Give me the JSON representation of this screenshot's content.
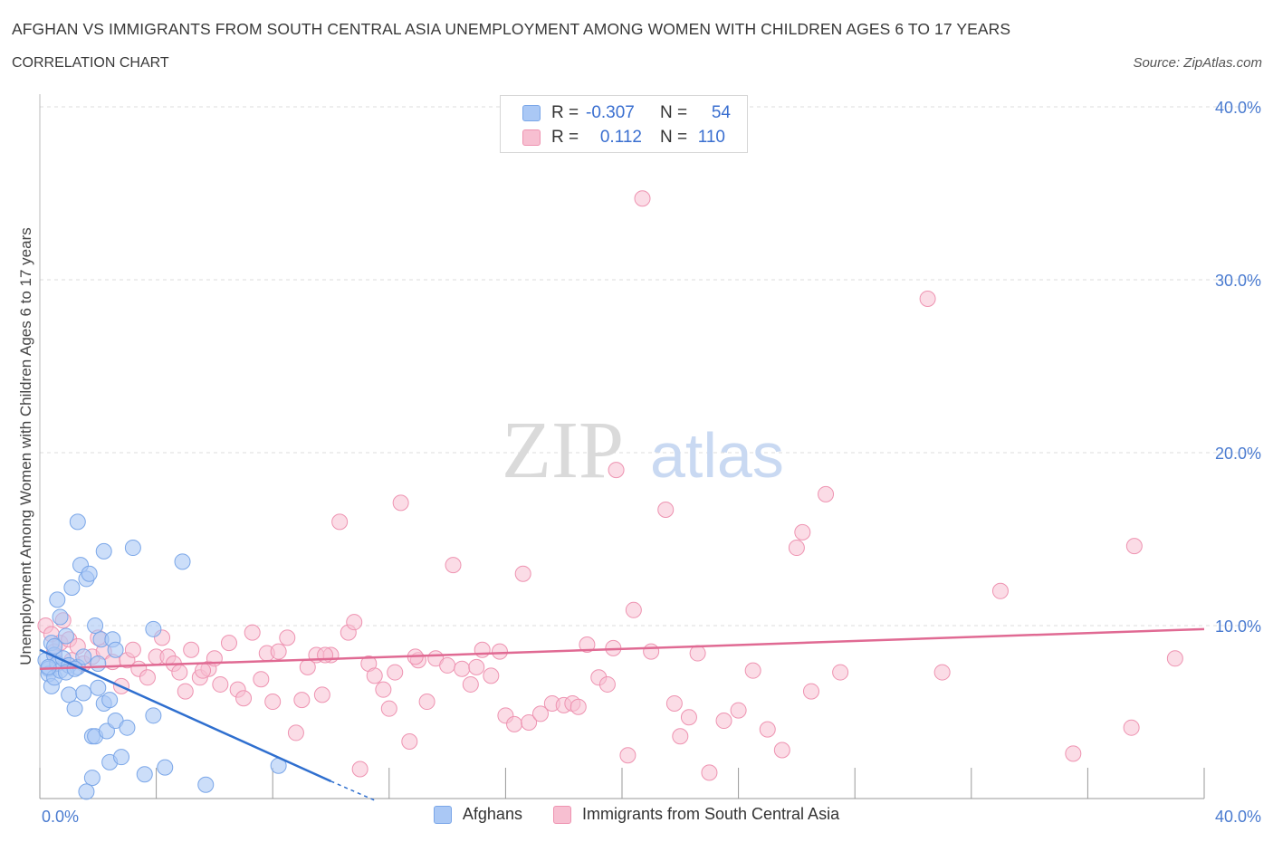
{
  "header": {
    "title": "AFGHAN VS IMMIGRANTS FROM SOUTH CENTRAL ASIA UNEMPLOYMENT AMONG WOMEN WITH CHILDREN AGES 6 TO 17 YEARS",
    "subtitle": "CORRELATION CHART",
    "source": "Source: ZipAtlas.com"
  },
  "watermark": {
    "zip": "ZIP",
    "atlas": "atlas"
  },
  "legend": {
    "afghans": {
      "r_label": "R =",
      "r_value": "-0.307",
      "n_label": "N =",
      "n_value": "54"
    },
    "immigrants": {
      "r_label": "R =",
      "r_value": "0.112",
      "n_label": "N =",
      "n_value": "110"
    }
  },
  "colors": {
    "afghans_fill": "#aac8f5",
    "afghans_stroke": "#7aa6e8",
    "afghans_line": "#2f6fcf",
    "immigrants_fill": "#f7bfd1",
    "immigrants_stroke": "#ee93b1",
    "immigrants_line": "#e06a93",
    "tick_text": "#4a7bd0",
    "grid": "#dddddd"
  },
  "chart_data": {
    "type": "scatter",
    "title": "AFGHAN VS IMMIGRANTS FROM SOUTH CENTRAL ASIA UNEMPLOYMENT AMONG WOMEN WITH CHILDREN AGES 6 TO 17 YEARS",
    "xlabel": "",
    "ylabel": "Unemployment Among Women with Children Ages 6 to 17 years",
    "xlim": [
      0,
      40
    ],
    "ylim": [
      0,
      40
    ],
    "x_tick_labels": [
      "0.0%",
      "40.0%"
    ],
    "y_tick_labels": [
      "10.0%",
      "20.0%",
      "30.0%",
      "40.0%"
    ],
    "y_ticks": [
      10,
      20,
      30,
      40
    ],
    "grid": true,
    "legend_position": "bottom",
    "series": [
      {
        "name": "Afghans",
        "points": [
          [
            0.2,
            8.0
          ],
          [
            0.3,
            7.5
          ],
          [
            0.3,
            7.2
          ],
          [
            0.4,
            9.0
          ],
          [
            0.4,
            6.5
          ],
          [
            0.5,
            8.3
          ],
          [
            0.5,
            7.0
          ],
          [
            0.6,
            7.8
          ],
          [
            0.6,
            11.5
          ],
          [
            0.7,
            10.5
          ],
          [
            0.7,
            7.4
          ],
          [
            0.8,
            8.1
          ],
          [
            0.9,
            9.4
          ],
          [
            1.0,
            6.0
          ],
          [
            1.0,
            7.7
          ],
          [
            1.1,
            12.2
          ],
          [
            1.2,
            5.2
          ],
          [
            1.3,
            16.0
          ],
          [
            1.3,
            7.6
          ],
          [
            1.4,
            13.5
          ],
          [
            1.5,
            6.1
          ],
          [
            1.5,
            8.2
          ],
          [
            1.6,
            12.7
          ],
          [
            1.7,
            13.0
          ],
          [
            1.8,
            3.6
          ],
          [
            1.8,
            1.2
          ],
          [
            1.9,
            3.6
          ],
          [
            1.9,
            10.0
          ],
          [
            2.0,
            6.4
          ],
          [
            2.1,
            9.2
          ],
          [
            2.2,
            5.5
          ],
          [
            2.2,
            14.3
          ],
          [
            2.3,
            3.9
          ],
          [
            2.4,
            5.7
          ],
          [
            2.4,
            2.1
          ],
          [
            2.5,
            9.2
          ],
          [
            2.6,
            4.5
          ],
          [
            2.6,
            8.6
          ],
          [
            2.8,
            2.4
          ],
          [
            3.0,
            4.1
          ],
          [
            3.2,
            14.5
          ],
          [
            3.6,
            1.4
          ],
          [
            3.9,
            9.8
          ],
          [
            3.9,
            4.8
          ],
          [
            4.3,
            1.8
          ],
          [
            4.9,
            13.7
          ],
          [
            5.7,
            0.8
          ],
          [
            8.2,
            1.9
          ],
          [
            0.3,
            7.6
          ],
          [
            1.6,
            0.4
          ],
          [
            0.9,
            7.3
          ],
          [
            0.5,
            8.8
          ],
          [
            1.2,
            7.5
          ],
          [
            2.0,
            7.8
          ]
        ]
      },
      {
        "name": "Immigrants from South Central Asia",
        "points": [
          [
            0.2,
            10.0
          ],
          [
            0.4,
            9.5
          ],
          [
            0.5,
            8.5
          ],
          [
            0.7,
            9.0
          ],
          [
            0.8,
            10.3
          ],
          [
            1.0,
            9.2
          ],
          [
            1.1,
            8.0
          ],
          [
            1.3,
            8.8
          ],
          [
            1.5,
            7.8
          ],
          [
            1.8,
            8.2
          ],
          [
            2.0,
            9.3
          ],
          [
            2.2,
            8.5
          ],
          [
            2.5,
            7.9
          ],
          [
            2.8,
            6.5
          ],
          [
            3.0,
            8.0
          ],
          [
            3.2,
            8.6
          ],
          [
            3.4,
            7.5
          ],
          [
            3.7,
            7.0
          ],
          [
            4.0,
            8.2
          ],
          [
            4.2,
            9.3
          ],
          [
            4.4,
            8.2
          ],
          [
            4.6,
            7.8
          ],
          [
            4.8,
            7.3
          ],
          [
            5.0,
            6.2
          ],
          [
            5.2,
            8.6
          ],
          [
            5.5,
            7.0
          ],
          [
            5.8,
            7.5
          ],
          [
            6.0,
            8.1
          ],
          [
            6.2,
            6.6
          ],
          [
            6.5,
            9.0
          ],
          [
            6.8,
            6.3
          ],
          [
            7.0,
            5.8
          ],
          [
            7.3,
            9.6
          ],
          [
            7.6,
            6.9
          ],
          [
            7.8,
            8.4
          ],
          [
            8.0,
            5.6
          ],
          [
            8.2,
            8.5
          ],
          [
            8.5,
            9.3
          ],
          [
            8.8,
            3.8
          ],
          [
            9.0,
            5.7
          ],
          [
            9.2,
            7.6
          ],
          [
            9.5,
            8.3
          ],
          [
            9.7,
            6.0
          ],
          [
            10.0,
            8.3
          ],
          [
            10.3,
            16.0
          ],
          [
            10.6,
            9.6
          ],
          [
            10.8,
            10.2
          ],
          [
            11.0,
            1.7
          ],
          [
            11.3,
            7.8
          ],
          [
            11.5,
            7.1
          ],
          [
            11.8,
            6.3
          ],
          [
            12.0,
            5.2
          ],
          [
            12.2,
            7.3
          ],
          [
            12.4,
            17.1
          ],
          [
            12.7,
            3.3
          ],
          [
            13.0,
            8.0
          ],
          [
            13.3,
            5.6
          ],
          [
            13.6,
            8.1
          ],
          [
            14.0,
            7.7
          ],
          [
            14.2,
            13.5
          ],
          [
            14.5,
            7.5
          ],
          [
            14.8,
            6.6
          ],
          [
            15.2,
            8.6
          ],
          [
            15.5,
            7.1
          ],
          [
            15.8,
            8.5
          ],
          [
            16.0,
            4.8
          ],
          [
            16.3,
            4.3
          ],
          [
            16.6,
            13.0
          ],
          [
            16.8,
            4.4
          ],
          [
            17.2,
            4.9
          ],
          [
            17.6,
            5.5
          ],
          [
            18.0,
            5.4
          ],
          [
            18.3,
            5.5
          ],
          [
            18.8,
            8.9
          ],
          [
            19.2,
            7.0
          ],
          [
            19.5,
            6.6
          ],
          [
            19.7,
            8.7
          ],
          [
            19.8,
            19.0
          ],
          [
            20.2,
            2.5
          ],
          [
            20.4,
            10.9
          ],
          [
            20.7,
            34.7
          ],
          [
            21.0,
            8.5
          ],
          [
            21.5,
            16.7
          ],
          [
            21.8,
            5.5
          ],
          [
            22.0,
            3.6
          ],
          [
            22.3,
            4.7
          ],
          [
            23.0,
            1.5
          ],
          [
            23.5,
            4.5
          ],
          [
            24.0,
            5.1
          ],
          [
            24.5,
            7.4
          ],
          [
            25.0,
            4.0
          ],
          [
            25.5,
            2.8
          ],
          [
            26.0,
            14.5
          ],
          [
            26.2,
            15.4
          ],
          [
            26.5,
            6.2
          ],
          [
            27.0,
            17.6
          ],
          [
            27.5,
            7.3
          ],
          [
            30.5,
            28.9
          ],
          [
            31.0,
            7.3
          ],
          [
            33.0,
            12.0
          ],
          [
            35.5,
            2.6
          ],
          [
            37.5,
            4.1
          ],
          [
            37.6,
            14.6
          ],
          [
            39.0,
            8.1
          ],
          [
            9.8,
            8.3
          ],
          [
            12.9,
            8.2
          ],
          [
            15.0,
            7.6
          ],
          [
            18.5,
            5.3
          ],
          [
            22.6,
            8.4
          ],
          [
            5.6,
            7.4
          ]
        ]
      }
    ],
    "trend_lines": [
      {
        "series": "Afghans",
        "from": [
          0,
          8.6
        ],
        "to": [
          10,
          1.0
        ],
        "dashed_to": [
          11.5,
          -0.1
        ]
      },
      {
        "series": "Immigrants from South Central Asia",
        "from": [
          0,
          7.5
        ],
        "to": [
          40,
          9.8
        ]
      }
    ]
  },
  "bottom_legend": {
    "afghans_label": "Afghans",
    "immigrants_label": "Immigrants from South Central Asia"
  }
}
